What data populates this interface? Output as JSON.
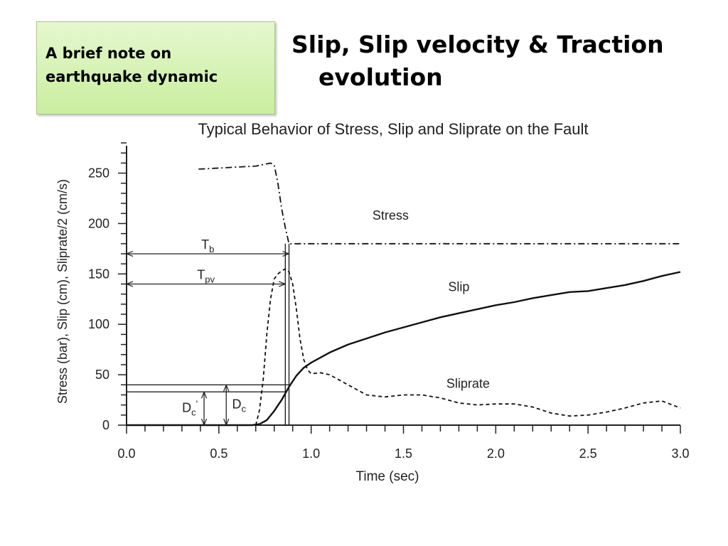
{
  "note": {
    "text": "A brief note on earthquake dynamic"
  },
  "slide_title": {
    "line1": "Slip, Slip velocity & Traction",
    "line2": "evolution"
  },
  "chart_data": {
    "type": "line",
    "title": "Typical Behavior of Stress, Slip and Sliprate on the Fault",
    "xlabel": "Time (sec)",
    "ylabel": "Stress (bar), Slip (cm), Sliprate/2 (cm/s)",
    "xlim": [
      0,
      3
    ],
    "ylim": [
      0,
      280
    ],
    "x_ticks": [
      "0.0",
      "0.5",
      "1.0",
      "1.5",
      "2.0",
      "2.5",
      "3.0"
    ],
    "y_ticks": [
      "0",
      "50",
      "100",
      "150",
      "200",
      "250"
    ],
    "grid": false,
    "series": [
      {
        "name": "Stress",
        "style": "dashdot",
        "points": [
          [
            0.39,
            254
          ],
          [
            0.5,
            255
          ],
          [
            0.6,
            256
          ],
          [
            0.7,
            257
          ],
          [
            0.78,
            260
          ],
          [
            0.8,
            258
          ],
          [
            0.82,
            240
          ],
          [
            0.84,
            215
          ],
          [
            0.86,
            196
          ],
          [
            0.88,
            180
          ],
          [
            1.0,
            180
          ],
          [
            1.5,
            180
          ],
          [
            2.0,
            180
          ],
          [
            2.5,
            180
          ],
          [
            3.0,
            180
          ]
        ]
      },
      {
        "name": "Slip",
        "style": "solid",
        "points": [
          [
            0.0,
            0
          ],
          [
            0.68,
            0
          ],
          [
            0.72,
            1
          ],
          [
            0.76,
            5
          ],
          [
            0.8,
            14
          ],
          [
            0.84,
            25
          ],
          [
            0.88,
            38
          ],
          [
            0.92,
            49
          ],
          [
            0.96,
            57
          ],
          [
            1.0,
            62
          ],
          [
            1.1,
            72
          ],
          [
            1.2,
            80
          ],
          [
            1.3,
            86
          ],
          [
            1.4,
            92
          ],
          [
            1.5,
            97
          ],
          [
            1.6,
            102
          ],
          [
            1.7,
            107
          ],
          [
            1.8,
            111
          ],
          [
            1.9,
            115
          ],
          [
            2.0,
            119
          ],
          [
            2.1,
            122
          ],
          [
            2.2,
            126
          ],
          [
            2.3,
            129
          ],
          [
            2.4,
            132
          ],
          [
            2.5,
            133
          ],
          [
            2.6,
            136
          ],
          [
            2.7,
            139
          ],
          [
            2.8,
            143
          ],
          [
            2.9,
            148
          ],
          [
            3.0,
            152
          ]
        ]
      },
      {
        "name": "Sliprate",
        "style": "dashed",
        "points": [
          [
            0.7,
            0
          ],
          [
            0.72,
            15
          ],
          [
            0.74,
            45
          ],
          [
            0.76,
            90
          ],
          [
            0.78,
            125
          ],
          [
            0.8,
            145
          ],
          [
            0.82,
            150
          ],
          [
            0.84,
            153
          ],
          [
            0.86,
            155
          ],
          [
            0.88,
            152
          ],
          [
            0.9,
            140
          ],
          [
            0.92,
            115
          ],
          [
            0.94,
            85
          ],
          [
            0.96,
            65
          ],
          [
            0.98,
            55
          ],
          [
            1.0,
            51
          ],
          [
            1.05,
            52
          ],
          [
            1.1,
            50
          ],
          [
            1.2,
            40
          ],
          [
            1.3,
            30
          ],
          [
            1.4,
            28
          ],
          [
            1.5,
            30
          ],
          [
            1.6,
            30
          ],
          [
            1.7,
            27
          ],
          [
            1.8,
            22
          ],
          [
            1.9,
            20
          ],
          [
            2.0,
            21
          ],
          [
            2.1,
            21
          ],
          [
            2.2,
            18
          ],
          [
            2.3,
            12
          ],
          [
            2.4,
            9
          ],
          [
            2.5,
            10
          ],
          [
            2.6,
            13
          ],
          [
            2.7,
            17
          ],
          [
            2.8,
            22
          ],
          [
            2.9,
            24
          ],
          [
            3.0,
            17
          ]
        ]
      }
    ],
    "annotations": [
      {
        "label": "T",
        "sub": "b",
        "x_start": 0.0,
        "x_end": 0.88,
        "y": 170
      },
      {
        "label": "T",
        "sub": "pv",
        "x_start": 0.0,
        "x_end": 0.86,
        "y": 140
      },
      {
        "label": "D",
        "sub": "c",
        "sup": "'",
        "x": 0.42,
        "y_start": 0,
        "y_end": 33
      },
      {
        "label": "D",
        "sub": "c",
        "x": 0.54,
        "y_start": 0,
        "y_end": 40
      }
    ],
    "reference_lines": {
      "vertical": [
        0.86,
        0.88
      ],
      "horizontal": [
        {
          "y": 40,
          "x_end": 0.88
        },
        {
          "y": 33,
          "x_end": 0.86
        }
      ]
    },
    "series_labels": [
      {
        "text": "Stress",
        "x": 1.43,
        "y": 204
      },
      {
        "text": "Slip",
        "x": 1.8,
        "y": 133
      },
      {
        "text": "Sliprate",
        "x": 1.85,
        "y": 37
      }
    ]
  }
}
